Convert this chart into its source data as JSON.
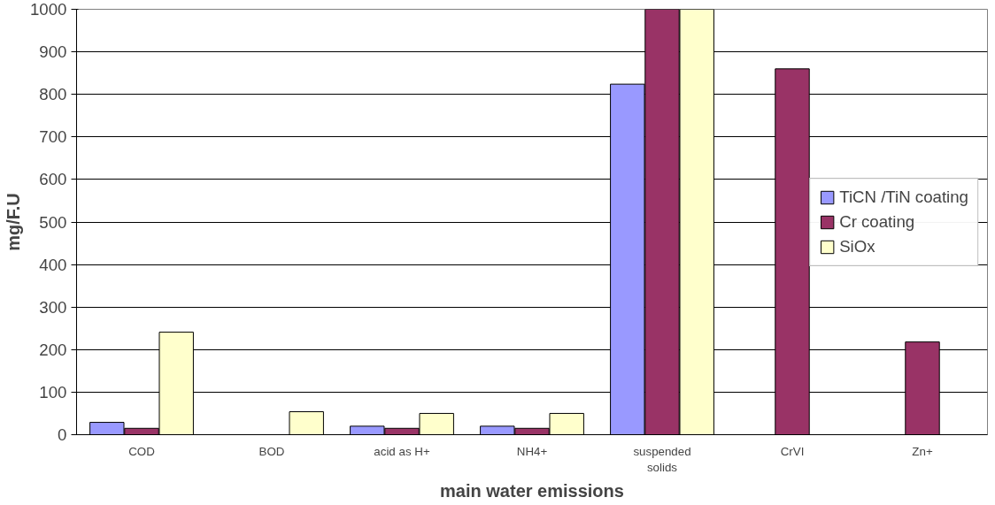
{
  "chart_data": {
    "type": "bar",
    "xlabel": "main water emissions",
    "ylabel": "mg/F.U",
    "categories": [
      "COD",
      "BOD",
      "acid as H+",
      "NH4+",
      "suspended solids",
      "CrVI",
      "Zn+"
    ],
    "series": [
      {
        "name": "TiCN /TiN coating",
        "color": "#9999ff",
        "values": [
          29,
          null,
          20,
          20,
          824,
          null,
          null
        ]
      },
      {
        "name": "Cr coating",
        "color": "#993366",
        "values": [
          15,
          null,
          15,
          15,
          1000,
          860,
          218
        ]
      },
      {
        "name": "SiOx",
        "color": "#ffffcc",
        "values": [
          241,
          54,
          50,
          50,
          1000,
          null,
          null
        ]
      }
    ],
    "ylim": [
      0,
      1000
    ],
    "yticks": [
      0,
      100,
      200,
      300,
      400,
      500,
      600,
      700,
      800,
      900,
      1000
    ],
    "grid": "y",
    "legend": "right"
  }
}
